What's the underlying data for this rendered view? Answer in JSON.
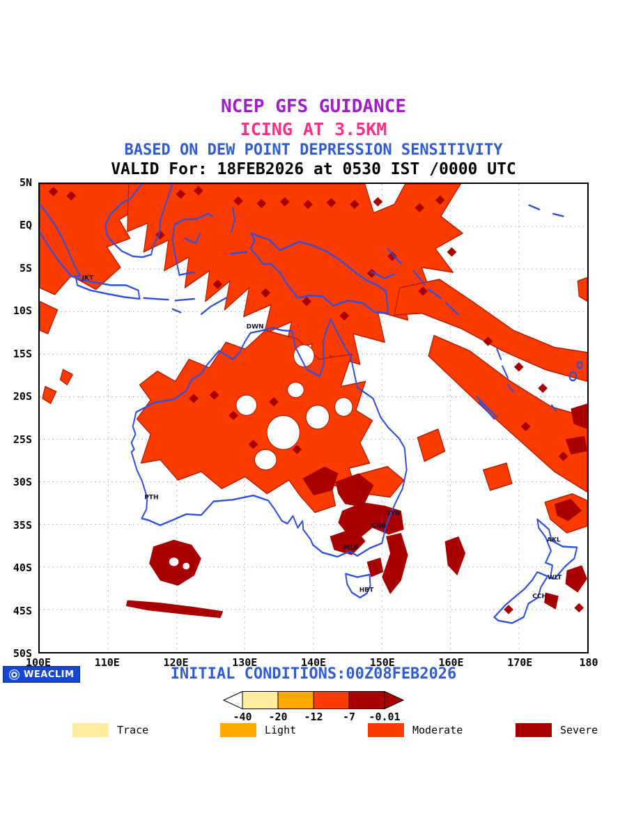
{
  "header": {
    "line1": "NCEP GFS GUIDANCE",
    "line2": "ICING AT 3.5KM",
    "line3": "BASED ON DEW POINT DEPRESSION SENSITIVITY",
    "line4": "VALID For: 18FEB2026 at 0530 IST /0000 UTC"
  },
  "map": {
    "lat_labels": [
      "5N",
      "EQ",
      "5S",
      "10S",
      "15S",
      "20S",
      "25S",
      "30S",
      "35S",
      "40S",
      "45S",
      "50S"
    ],
    "lon_labels": [
      "100E",
      "110E",
      "120E",
      "130E",
      "140E",
      "150E",
      "160E",
      "170E",
      "180"
    ],
    "cities": [
      {
        "name": "JKT",
        "lon": 106.8,
        "lat": -6.1
      },
      {
        "name": "DWN",
        "lon": 130.8,
        "lat": -11.9
      },
      {
        "name": "PTH",
        "lon": 115.9,
        "lat": -31.9
      },
      {
        "name": "SYN",
        "lon": 151.2,
        "lat": -33.8
      },
      {
        "name": "CNB",
        "lon": 149.1,
        "lat": -35.3
      },
      {
        "name": "MLB",
        "lon": 145.0,
        "lat": -37.8
      },
      {
        "name": "HBT",
        "lon": 147.3,
        "lat": -42.8
      },
      {
        "name": "AKL",
        "lon": 174.7,
        "lat": -36.9
      },
      {
        "name": "WLT",
        "lon": 174.8,
        "lat": -41.3
      },
      {
        "name": "CCH",
        "lon": 172.6,
        "lat": -43.5
      }
    ]
  },
  "footer": {
    "logo": "WEACLIM",
    "initial_conditions": "INITIAL CONDITIONS:00Z08FEB2026",
    "scale": {
      "tick_labels": [
        "-40",
        "-20",
        "-12",
        "-7",
        "-0.01"
      ],
      "colors": [
        "#FFEC9E",
        "#FFA800",
        "#FB3B00",
        "#A80000"
      ]
    },
    "legend": [
      {
        "label": "Trace",
        "color": "#FFEC9E"
      },
      {
        "label": "Light",
        "color": "#FFA800"
      },
      {
        "label": "Moderate",
        "color": "#FB3B00"
      },
      {
        "label": "Severe",
        "color": "#A80000"
      }
    ]
  },
  "colors": {
    "moderate": "#FB3B00",
    "severe": "#A80000",
    "coastline": "#2E4FE0",
    "grid": "#777777",
    "title_purple": "#A21CCB",
    "title_pink": "#FB2E86",
    "text_blue": "#2E5BDA"
  }
}
